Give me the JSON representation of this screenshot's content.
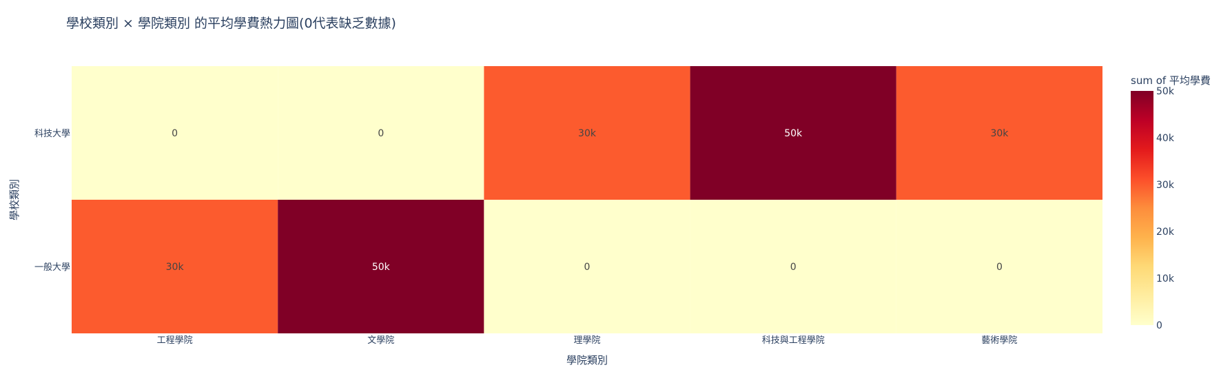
{
  "chart_data": {
    "type": "heatmap",
    "title": "學校類別 × 學院類別 的平均學費熱力圖(0代表缺乏數據)",
    "xlabel": "學院類別",
    "ylabel": "學校類別",
    "x": [
      "工程學院",
      "文學院",
      "理學院",
      "科技與工程學院",
      "藝術學院"
    ],
    "y": [
      "科技大學",
      "一般大學"
    ],
    "z": [
      [
        0,
        0,
        30000,
        50000,
        30000
      ],
      [
        30000,
        50000,
        0,
        0,
        0
      ]
    ],
    "text": [
      [
        "0",
        "0",
        "30k",
        "50k",
        "30k"
      ],
      [
        "30k",
        "50k",
        "0",
        "0",
        "0"
      ]
    ],
    "colorscale": "YlOrRd",
    "colorbar": {
      "title": "sum of 平均學費",
      "range": [
        0,
        50000
      ],
      "ticks": [
        0,
        10000,
        20000,
        30000,
        40000,
        50000
      ],
      "tick_labels": [
        "0",
        "10k",
        "20k",
        "30k",
        "40k",
        "50k"
      ]
    }
  }
}
